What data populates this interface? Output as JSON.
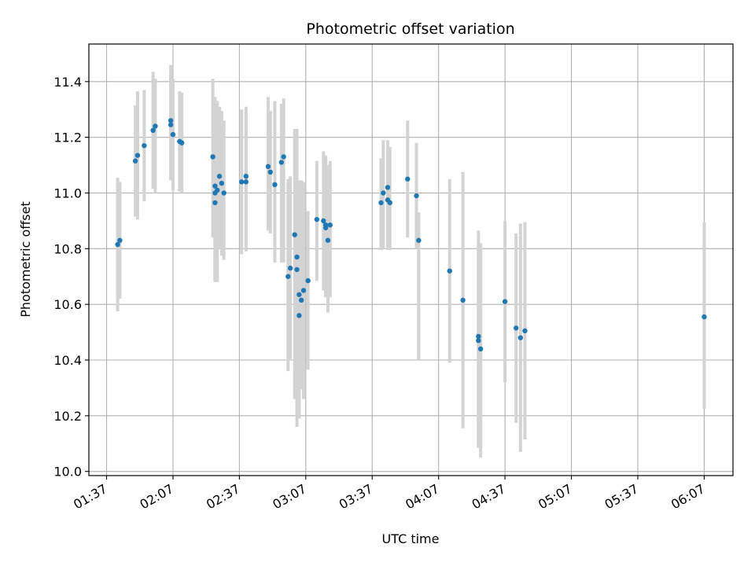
{
  "chart_data": {
    "type": "scatter",
    "title": "Photometric offset variation",
    "xlabel": "UTC time",
    "ylabel": "Photometric offset",
    "x_ticks": [
      "01:37",
      "02:07",
      "02:37",
      "03:07",
      "03:37",
      "04:07",
      "04:37",
      "05:07",
      "05:37",
      "06:07"
    ],
    "y_ticks": [
      "10.0",
      "10.2",
      "10.4",
      "10.6",
      "10.8",
      "11.0",
      "11.2",
      "11.4"
    ],
    "xlim": [
      "01:29",
      "06:20"
    ],
    "ylim": [
      9.985,
      11.535
    ],
    "grid": true,
    "marker_color": "#1f77b4",
    "errorbar_color": "#d3d3d3",
    "series": [
      {
        "x": [
          "01:42",
          "01:43",
          "01:50",
          "01:51",
          "01:54",
          "01:58",
          "01:59",
          "02:06",
          "02:06",
          "02:07",
          "02:10",
          "02:11",
          "02:25",
          "02:26",
          "02:26",
          "02:26",
          "02:27",
          "02:28",
          "02:29",
          "02:30",
          "02:38",
          "02:40",
          "02:40",
          "02:50",
          "02:51",
          "02:53",
          "02:56",
          "02:57",
          "02:59",
          "03:00",
          "03:02",
          "03:03",
          "03:03",
          "03:04",
          "03:04",
          "03:05",
          "03:06",
          "03:08",
          "03:12",
          "03:15",
          "03:16",
          "03:16",
          "03:17",
          "03:18",
          "03:41",
          "03:42",
          "03:44",
          "03:44",
          "03:45",
          "03:53",
          "03:57",
          "03:58",
          "04:12",
          "04:18",
          "04:25",
          "04:25",
          "04:26",
          "04:37",
          "04:42",
          "04:44",
          "04:46",
          "06:07"
        ],
        "y": [
          10.815,
          10.83,
          11.115,
          11.135,
          11.17,
          11.225,
          11.24,
          11.26,
          11.245,
          11.21,
          11.185,
          11.18,
          11.13,
          11.025,
          10.965,
          11.0,
          11.01,
          11.06,
          11.035,
          11.0,
          11.04,
          11.06,
          11.04,
          11.095,
          11.075,
          11.03,
          11.11,
          11.13,
          10.7,
          10.73,
          10.85,
          10.77,
          10.725,
          10.56,
          10.635,
          10.615,
          10.65,
          10.685,
          10.905,
          10.9,
          10.885,
          10.875,
          10.83,
          10.885,
          10.965,
          11.0,
          11.02,
          10.975,
          10.965,
          11.05,
          10.99,
          10.83,
          10.72,
          10.615,
          10.485,
          10.47,
          10.44,
          10.61,
          10.515,
          10.48,
          10.505,
          10.555
        ],
        "yerr_low": [
          0.24,
          0.21,
          0.2,
          0.23,
          0.2,
          0.21,
          0.24,
          0.2,
          0.2,
          0.2,
          0.18,
          0.18,
          0.29,
          0.34,
          0.28,
          0.32,
          0.33,
          0.26,
          0.26,
          0.24,
          0.26,
          0.25,
          0.25,
          0.23,
          0.22,
          0.28,
          0.36,
          0.38,
          0.34,
          0.33,
          0.59,
          0.61,
          0.45,
          0.37,
          0.42,
          0.32,
          0.39,
          0.32,
          0.22,
          0.25,
          0.25,
          0.25,
          0.26,
          0.26,
          0.17,
          0.2,
          0.22,
          0.18,
          0.17,
          0.21,
          0.19,
          0.43,
          0.33,
          0.46,
          0.4,
          0.38,
          0.39,
          0.29,
          0.34,
          0.41,
          0.39,
          0.33
        ],
        "yerr_high": [
          0.24,
          0.21,
          0.2,
          0.23,
          0.2,
          0.21,
          0.17,
          0.2,
          0.2,
          0.2,
          0.18,
          0.18,
          0.28,
          0.32,
          0.29,
          0.33,
          0.32,
          0.25,
          0.26,
          0.26,
          0.26,
          0.25,
          0.25,
          0.25,
          0.22,
          0.3,
          0.21,
          0.21,
          0.35,
          0.33,
          0.38,
          0.46,
          0.26,
          0.47,
          0.41,
          0.43,
          0.39,
          0.25,
          0.21,
          0.25,
          0.25,
          0.25,
          0.27,
          0.23,
          0.16,
          0.19,
          0.17,
          0.19,
          0.2,
          0.21,
          0.19,
          0.1,
          0.33,
          0.46,
          0.38,
          0.35,
          0.38,
          0.29,
          0.34,
          0.41,
          0.39,
          0.34
        ]
      }
    ]
  }
}
